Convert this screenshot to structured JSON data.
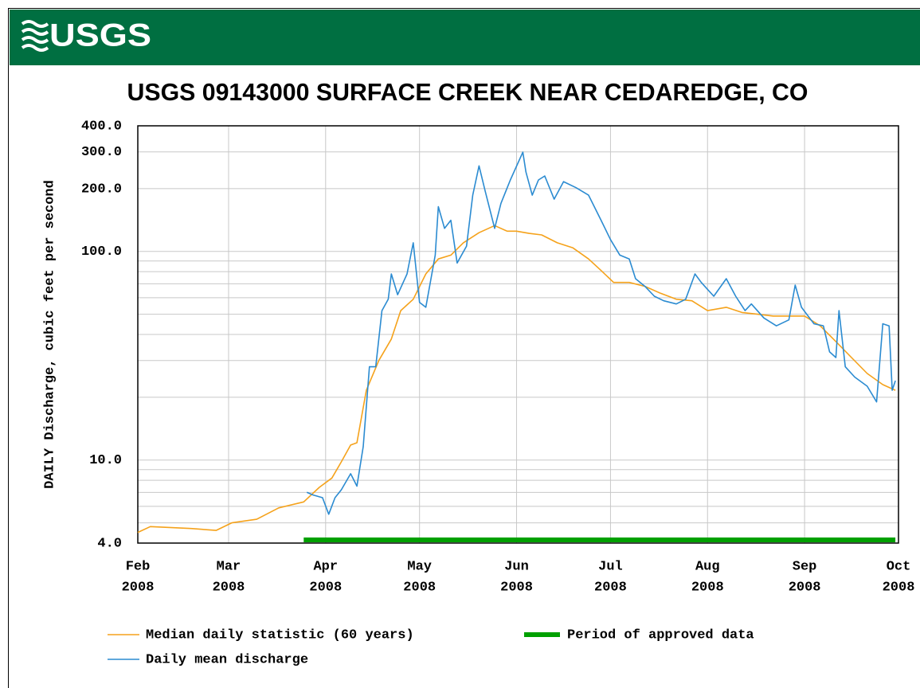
{
  "header": {
    "logo": "USGS"
  },
  "chart_data": {
    "type": "line",
    "title": "USGS 09143000 SURFACE CREEK NEAR CEDAREDGE, CO",
    "y_label": "DAILY Discharge, cubic feet per second",
    "log_y": true,
    "grid": true,
    "xlim": [
      "2008-02-01",
      "2008-10-01"
    ],
    "xticks": [
      {
        "value": "2008-02-01",
        "label": [
          "Feb",
          "2008"
        ]
      },
      {
        "value": "2008-03-01",
        "label": [
          "Mar",
          "2008"
        ]
      },
      {
        "value": "2008-04-01",
        "label": [
          "Apr",
          "2008"
        ]
      },
      {
        "value": "2008-05-01",
        "label": [
          "May",
          "2008"
        ]
      },
      {
        "value": "2008-06-01",
        "label": [
          "Jun",
          "2008"
        ]
      },
      {
        "value": "2008-07-01",
        "label": [
          "Jul",
          "2008"
        ]
      },
      {
        "value": "2008-08-01",
        "label": [
          "Aug",
          "2008"
        ]
      },
      {
        "value": "2008-09-01",
        "label": [
          "Sep",
          "2008"
        ]
      },
      {
        "value": "2008-10-01",
        "label": [
          "Oct",
          "2008"
        ]
      }
    ],
    "ylim": [
      4,
      400
    ],
    "yticks": [
      {
        "value": 4,
        "label": "4.0"
      },
      {
        "value": 10,
        "label": "10.0"
      },
      {
        "value": 100,
        "label": "100.0"
      },
      {
        "value": 200,
        "label": "200.0"
      },
      {
        "value": 300,
        "label": "300.0"
      },
      {
        "value": 400,
        "label": "400.0"
      }
    ],
    "minor_yticks": [
      5,
      6,
      7,
      8,
      9,
      20,
      30,
      40,
      50,
      60,
      70,
      80,
      90
    ],
    "series": [
      {
        "name": "Median daily statistic (60 years)",
        "color": "#f5a21b",
        "x": [
          "2008-02-01",
          "2008-02-05",
          "2008-02-18",
          "2008-02-26",
          "2008-03-02",
          "2008-03-10",
          "2008-03-17",
          "2008-03-25",
          "2008-03-30",
          "2008-04-03",
          "2008-04-06",
          "2008-04-09",
          "2008-04-11",
          "2008-04-14",
          "2008-04-18",
          "2008-04-22",
          "2008-04-25",
          "2008-04-29",
          "2008-05-03",
          "2008-05-07",
          "2008-05-11",
          "2008-05-15",
          "2008-05-20",
          "2008-05-25",
          "2008-05-29",
          "2008-06-01",
          "2008-06-05",
          "2008-06-09",
          "2008-06-14",
          "2008-06-19",
          "2008-06-24",
          "2008-06-28",
          "2008-07-02",
          "2008-07-07",
          "2008-07-12",
          "2008-07-17",
          "2008-07-22",
          "2008-07-27",
          "2008-08-01",
          "2008-08-07",
          "2008-08-12",
          "2008-08-17",
          "2008-08-22",
          "2008-08-27",
          "2008-09-01",
          "2008-09-06",
          "2008-09-11",
          "2008-09-16",
          "2008-09-21",
          "2008-09-26",
          "2008-09-30"
        ],
        "values": [
          4.5,
          4.8,
          4.7,
          4.6,
          5.0,
          5.2,
          5.9,
          6.3,
          7.4,
          8.2,
          9.8,
          11.8,
          12.1,
          21.6,
          30,
          38,
          52,
          59,
          78,
          92,
          96,
          110,
          123,
          133,
          125,
          125,
          122,
          120,
          110,
          104,
          92,
          81,
          71,
          71,
          68,
          63,
          59,
          58,
          52,
          54,
          51,
          50,
          49,
          49,
          49,
          44,
          37,
          31,
          26,
          23,
          21.6
        ]
      },
      {
        "name": "Daily mean discharge",
        "color": "#2b8bd1",
        "x": [
          "2008-03-26",
          "2008-03-28",
          "2008-03-31",
          "2008-04-02",
          "2008-04-04",
          "2008-04-06",
          "2008-04-09",
          "2008-04-11",
          "2008-04-13",
          "2008-04-15",
          "2008-04-17",
          "2008-04-19",
          "2008-04-21",
          "2008-04-22",
          "2008-04-24",
          "2008-04-27",
          "2008-04-29",
          "2008-05-01",
          "2008-05-03",
          "2008-05-06",
          "2008-05-07",
          "2008-05-09",
          "2008-05-11",
          "2008-05-13",
          "2008-05-16",
          "2008-05-18",
          "2008-05-20",
          "2008-05-22",
          "2008-05-25",
          "2008-05-27",
          "2008-05-30",
          "2008-06-03",
          "2008-06-04",
          "2008-06-06",
          "2008-06-08",
          "2008-06-10",
          "2008-06-13",
          "2008-06-16",
          "2008-06-20",
          "2008-06-24",
          "2008-06-28",
          "2008-07-01",
          "2008-07-04",
          "2008-07-07",
          "2008-07-09",
          "2008-07-12",
          "2008-07-15",
          "2008-07-18",
          "2008-07-22",
          "2008-07-25",
          "2008-07-28",
          "2008-07-30",
          "2008-08-03",
          "2008-08-07",
          "2008-08-10",
          "2008-08-13",
          "2008-08-15",
          "2008-08-19",
          "2008-08-23",
          "2008-08-27",
          "2008-08-29",
          "2008-08-31",
          "2008-09-04",
          "2008-09-07",
          "2008-09-09",
          "2008-09-11",
          "2008-09-12",
          "2008-09-14",
          "2008-09-17",
          "2008-09-21",
          "2008-09-24",
          "2008-09-26",
          "2008-09-28",
          "2008-09-29",
          "2008-09-30"
        ],
        "values": [
          7.0,
          6.8,
          6.6,
          5.5,
          6.6,
          7.2,
          8.6,
          7.5,
          11.6,
          28,
          28,
          52,
          59,
          78,
          62,
          78,
          110,
          57,
          54,
          96,
          164,
          129,
          141,
          88,
          106,
          186,
          257,
          194,
          129,
          170,
          220,
          299,
          240,
          186,
          220,
          230,
          178,
          216,
          202,
          186,
          141,
          114,
          96,
          92,
          74,
          68,
          61,
          58,
          56,
          59,
          78,
          71,
          61,
          74,
          61,
          52,
          56,
          48,
          44,
          47,
          69,
          54,
          45,
          44,
          33,
          31,
          52,
          28,
          25,
          22.6,
          19.0,
          45,
          44,
          21.6,
          24
        ]
      }
    ],
    "spans": [
      {
        "name": "Period of approved data",
        "color": "#00a000",
        "start": "2008-03-25",
        "end": "2008-09-30"
      }
    ]
  }
}
